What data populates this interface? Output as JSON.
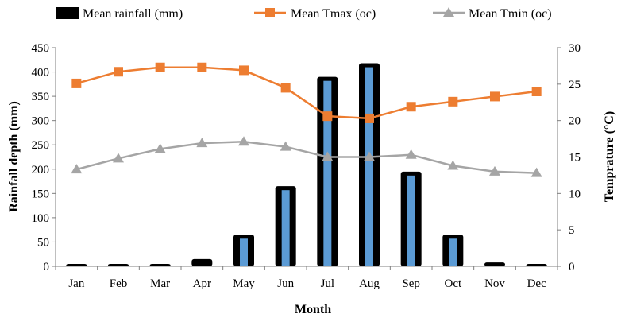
{
  "chart_data": {
    "type": "bar+line",
    "categories": [
      "Jan",
      "Feb",
      "Mar",
      "Apr",
      "May",
      "Jun",
      "Jul",
      "Aug",
      "Sep",
      "Oct",
      "Nov",
      "Dec"
    ],
    "xlabel": "Month",
    "ylabel_left": "Rainfall  depth  (mm)",
    "ylabel_right": "Temprature  (°C)",
    "ylim_left": [
      0,
      450
    ],
    "yticks_left": [
      0,
      50,
      100,
      150,
      200,
      250,
      300,
      350,
      400,
      450
    ],
    "ylim_right": [
      0,
      30
    ],
    "yticks_right": [
      0,
      5,
      10,
      15,
      20,
      25,
      30
    ],
    "grid": false,
    "legend_position": "top",
    "series": [
      {
        "name": "Mean rainfall  (mm)",
        "kind": "bar",
        "axis": "left",
        "color": "#000000",
        "inner_color": "#5B9BD5",
        "values": [
          3,
          3,
          3,
          15,
          65,
          165,
          390,
          418,
          195,
          65,
          8,
          3
        ]
      },
      {
        "name": "Mean Tmax  (oc)",
        "kind": "line",
        "axis": "right",
        "marker": "square",
        "color": "#ED7D31",
        "values": [
          25.1,
          26.7,
          27.3,
          27.3,
          26.9,
          24.5,
          20.6,
          20.3,
          21.9,
          22.6,
          23.3,
          24.0
        ]
      },
      {
        "name": "Mean Tmin  (oc)",
        "kind": "line",
        "axis": "right",
        "marker": "triangle",
        "color": "#A5A5A5",
        "values": [
          13.3,
          14.8,
          16.1,
          16.9,
          17.1,
          16.4,
          15.0,
          15.0,
          15.3,
          13.8,
          13.0,
          12.8
        ]
      }
    ]
  }
}
